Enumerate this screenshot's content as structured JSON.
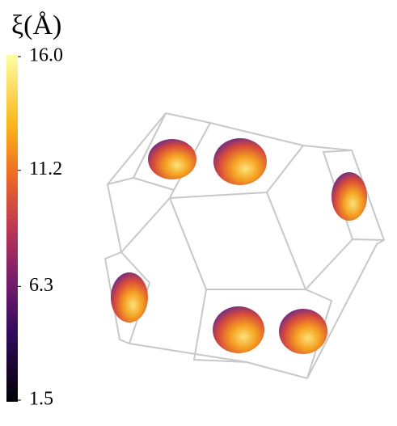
{
  "chart_data": {
    "type": "surface",
    "colorbar_label": "ξ(Å)",
    "clim": [
      1.5,
      16.0
    ],
    "cticks": [
      1.5,
      6.3,
      11.2,
      {
        "value": 16.0,
        "label": "16.0"
      }
    ]
  }
}
